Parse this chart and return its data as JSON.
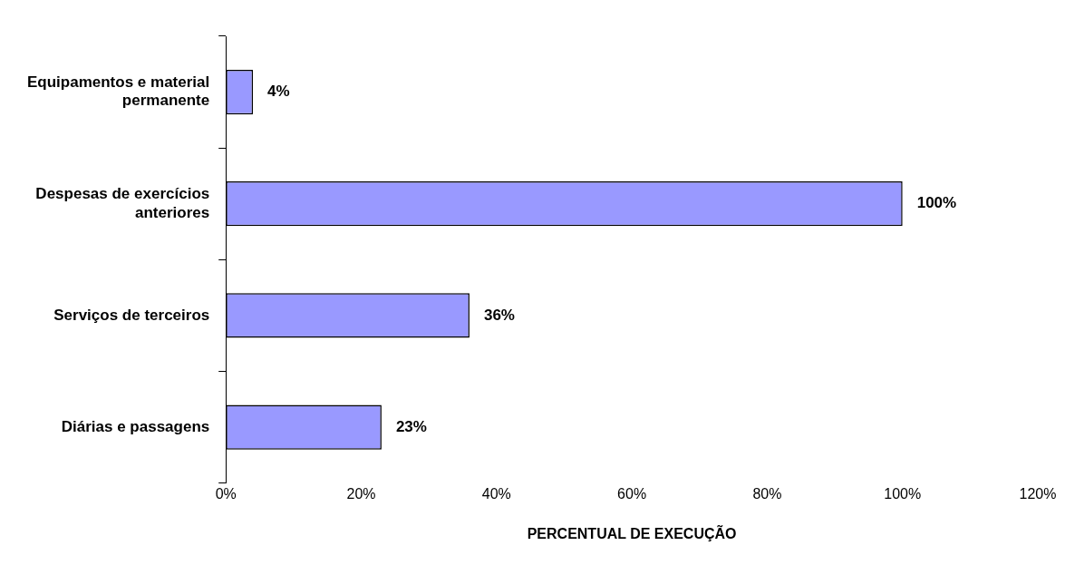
{
  "chart_data": {
    "type": "bar",
    "orientation": "horizontal",
    "xlabel": "PERCENTUAL DE EXECUÇÃO",
    "categories": [
      "Equipamentos e material permanente",
      "Despesas de exercícios anteriores",
      "Serviços de terceiros",
      "Diárias e passagens"
    ],
    "values": [
      4,
      100,
      36,
      23
    ],
    "value_labels": [
      "4%",
      "100%",
      "36%",
      "23%"
    ],
    "color": "#9999ff",
    "xlim": [
      0,
      120
    ],
    "xticks": [
      {
        "value": 0,
        "label": "0%"
      },
      {
        "value": 20,
        "label": "20%"
      },
      {
        "value": 40,
        "label": "40%"
      },
      {
        "value": 60,
        "label": "60%"
      },
      {
        "value": 80,
        "label": "80%"
      },
      {
        "value": 100,
        "label": "100%"
      },
      {
        "value": 120,
        "label": "120%"
      }
    ],
    "grid": false,
    "legend": false
  }
}
